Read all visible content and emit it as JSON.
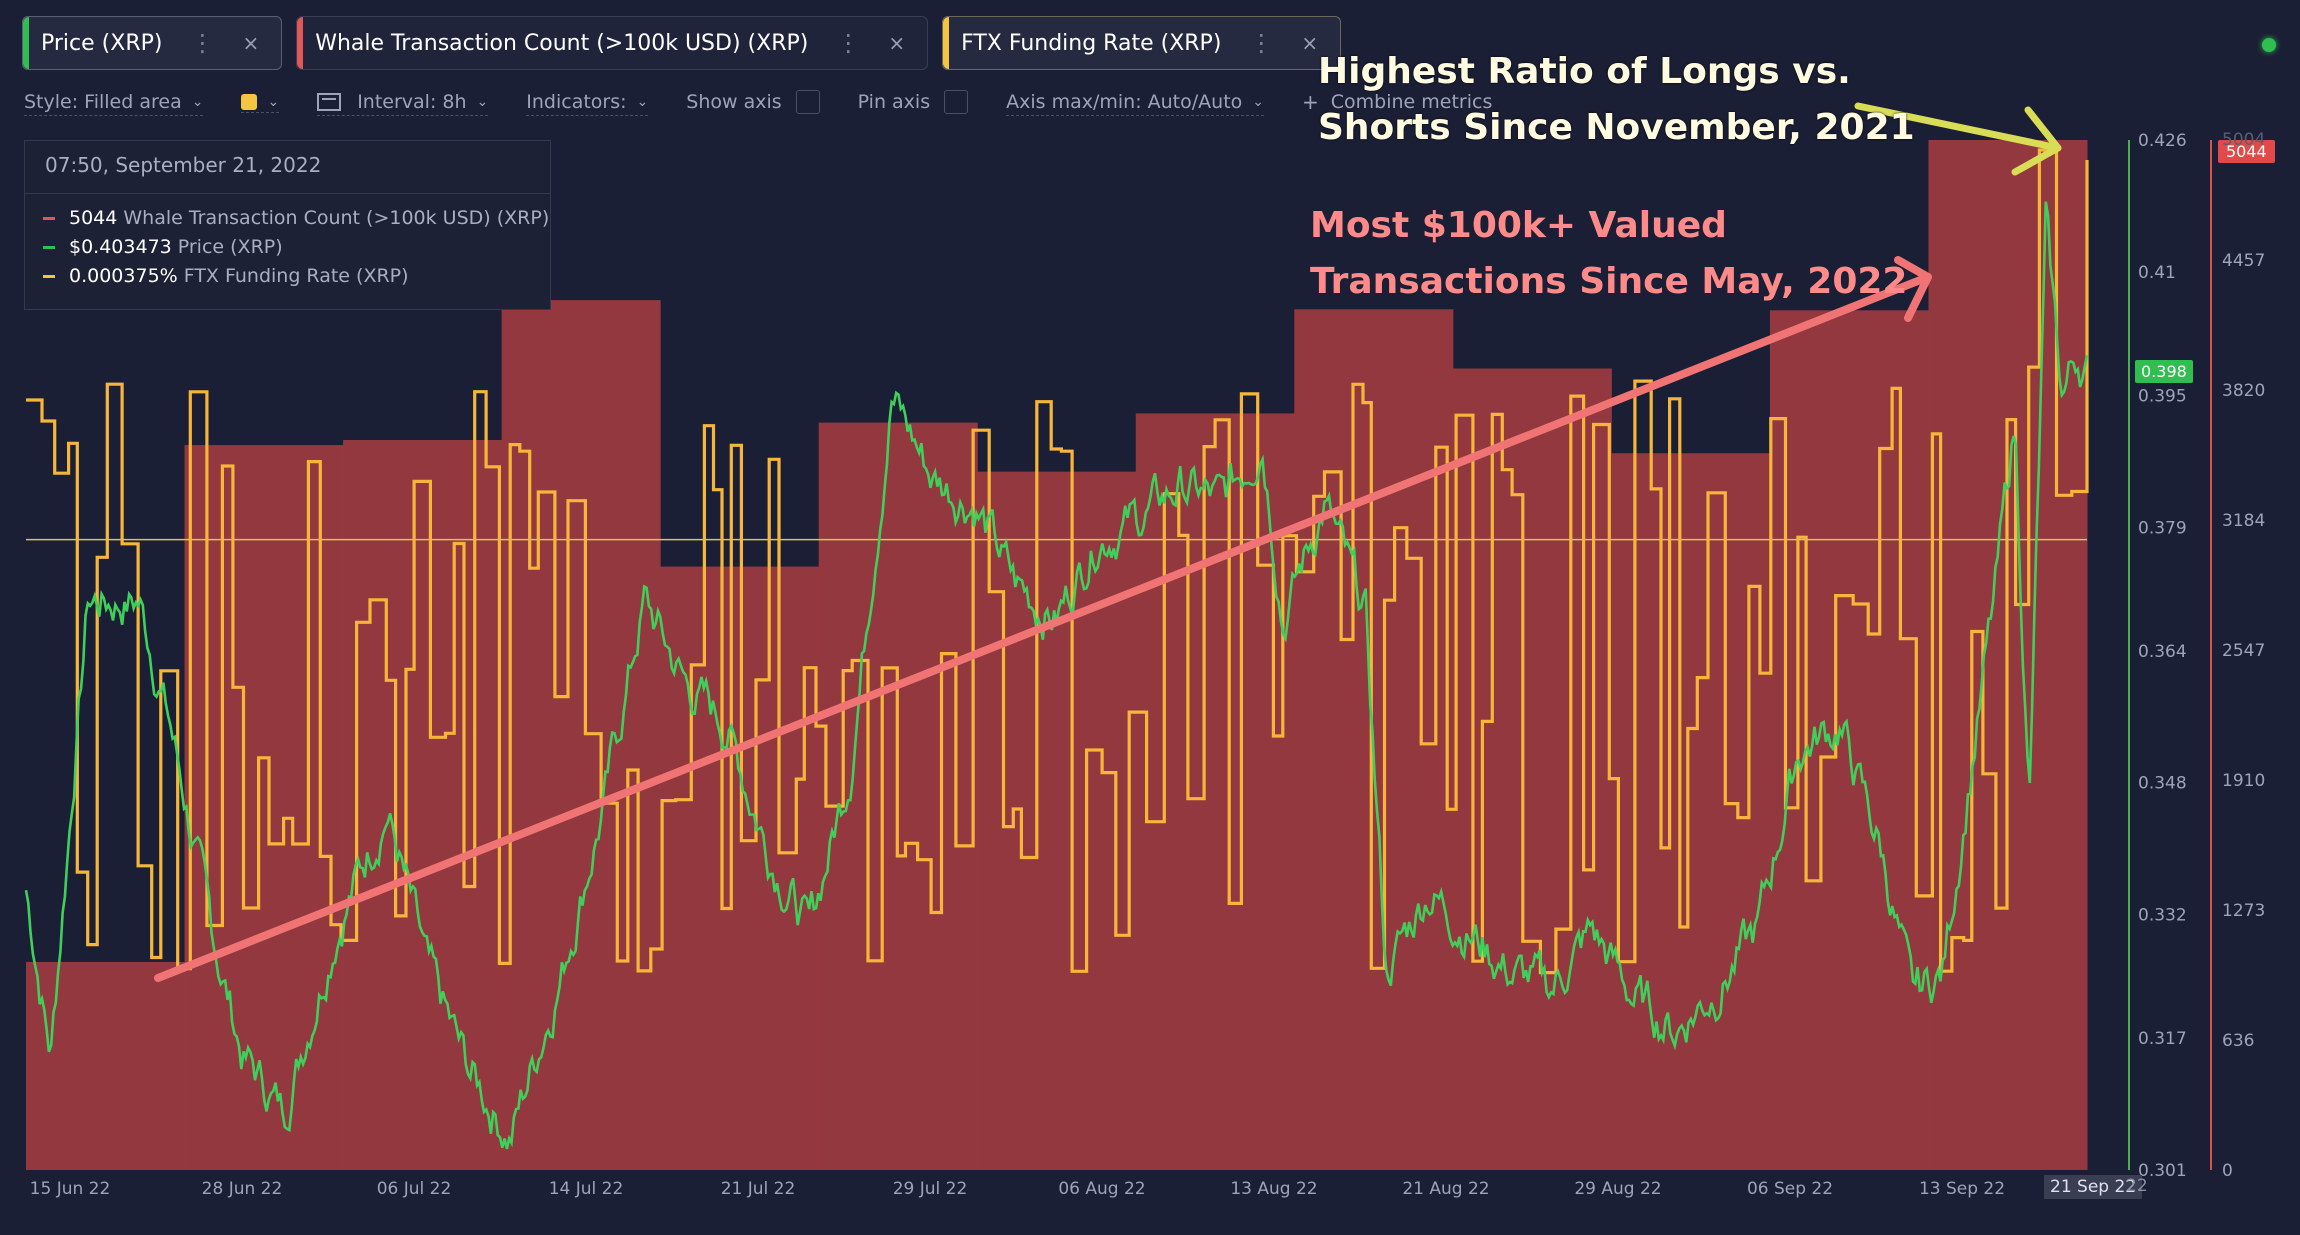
{
  "tabs": [
    {
      "label": "Price (XRP)",
      "color": "#2fbe4f",
      "menu_glyph": "⋮",
      "close_glyph": "×"
    },
    {
      "label": "Whale Transaction Count (>100k USD) (XRP)",
      "color": "#e25656",
      "menu_glyph": "⋮",
      "close_glyph": "×"
    },
    {
      "label": "FTX Funding Rate (XRP)",
      "color": "#f5c542",
      "menu_glyph": "⋮",
      "close_glyph": "×"
    }
  ],
  "toolbar": {
    "style_label": "Style: Filled area",
    "interval_label": "Interval: 8h",
    "indicators_label": "Indicators:",
    "show_axis_label": "Show axis",
    "pin_axis_label": "Pin axis",
    "axis_maxmin_label": "Axis max/min: Auto/Auto",
    "combine_label": "Combine metrics",
    "swatch_color": "#f5c542",
    "chevron_glyph": "⌄",
    "plus_glyph": "+"
  },
  "legend": {
    "datetime": "07:50, September 21, 2022",
    "rows": [
      {
        "value": "5044",
        "name": "Whale Transaction Count (>100k USD) (XRP)",
        "color": "#e25656"
      },
      {
        "value": "$0.403473",
        "name": "Price (XRP)",
        "color": "#2fbe4f"
      },
      {
        "value": "0.000375%",
        "name": "FTX Funding Rate (XRP)",
        "color": "#f5c542"
      }
    ]
  },
  "annotations": {
    "yellow_line1": "Highest Ratio of Longs vs.",
    "yellow_line2": "Shorts Since November, 2021",
    "red_line1": "Most $100k+ Valued",
    "red_line2": "Transactions Since May, 2022"
  },
  "tags": {
    "price_current": "0.398",
    "whale_current": "5044",
    "end_date": "21 Sep 22",
    "hidden_axis_top": "5004",
    "hidden_x_suffix": "22"
  },
  "chart_data": {
    "type": "line",
    "x_ticks": [
      "15 Jun 22",
      "28 Jun 22",
      "06 Jul 22",
      "14 Jul 22",
      "21 Jul 22",
      "29 Jul 22",
      "06 Aug 22",
      "13 Aug 22",
      "21 Aug 22",
      "29 Aug 22",
      "06 Sep 22",
      "13 Sep 22"
    ],
    "price_axis": {
      "ticks": [
        "0.426",
        "0.41",
        "0.395",
        "0.379",
        "0.364",
        "0.348",
        "0.332",
        "0.317",
        "0.301"
      ],
      "range": [
        0.301,
        0.426
      ]
    },
    "whale_axis": {
      "ticks": [
        "4457",
        "3820",
        "3184",
        "2547",
        "1910",
        "1273",
        "636",
        "0"
      ],
      "range": [
        0,
        5044
      ]
    },
    "funding_reference_price_level": 0.3775,
    "whale_series": {
      "name": "Whale Transaction Count (>100k USD) (XRP)",
      "color": "#e25656",
      "weekly_values": [
        1019,
        3550,
        3575,
        4260,
        2955,
        3660,
        3420,
        3705,
        4215,
        3925,
        3510,
        4210,
        5044
      ]
    },
    "price_series": {
      "name": "Price (XRP)",
      "color": "#2fbe4f",
      "anchors": [
        [
          0,
          0.335
        ],
        [
          0.012,
          0.315
        ],
        [
          0.03,
          0.37
        ],
        [
          0.055,
          0.37
        ],
        [
          0.07,
          0.355
        ],
        [
          0.09,
          0.33
        ],
        [
          0.105,
          0.315
        ],
        [
          0.125,
          0.308
        ],
        [
          0.15,
          0.33
        ],
        [
          0.175,
          0.345
        ],
        [
          0.195,
          0.325
        ],
        [
          0.215,
          0.313
        ],
        [
          0.235,
          0.305
        ],
        [
          0.26,
          0.325
        ],
        [
          0.28,
          0.345
        ],
        [
          0.3,
          0.37
        ],
        [
          0.32,
          0.36
        ],
        [
          0.34,
          0.355
        ],
        [
          0.36,
          0.34
        ],
        [
          0.38,
          0.33
        ],
        [
          0.4,
          0.35
        ],
        [
          0.42,
          0.395
        ],
        [
          0.44,
          0.385
        ],
        [
          0.46,
          0.382
        ],
        [
          0.48,
          0.372
        ],
        [
          0.5,
          0.368
        ],
        [
          0.52,
          0.378
        ],
        [
          0.54,
          0.38
        ],
        [
          0.56,
          0.384
        ],
        [
          0.58,
          0.382
        ],
        [
          0.6,
          0.39
        ],
        [
          0.61,
          0.368
        ],
        [
          0.63,
          0.382
        ],
        [
          0.65,
          0.368
        ],
        [
          0.66,
          0.325
        ],
        [
          0.68,
          0.335
        ],
        [
          0.7,
          0.33
        ],
        [
          0.72,
          0.325
        ],
        [
          0.74,
          0.323
        ],
        [
          0.76,
          0.33
        ],
        [
          0.78,
          0.322
        ],
        [
          0.8,
          0.318
        ],
        [
          0.82,
          0.323
        ],
        [
          0.84,
          0.33
        ],
        [
          0.86,
          0.352
        ],
        [
          0.88,
          0.355
        ],
        [
          0.9,
          0.34
        ],
        [
          0.915,
          0.322
        ],
        [
          0.93,
          0.325
        ],
        [
          0.945,
          0.352
        ],
        [
          0.955,
          0.37
        ],
        [
          0.965,
          0.392
        ],
        [
          0.972,
          0.345
        ],
        [
          0.98,
          0.415
        ],
        [
          0.988,
          0.395
        ],
        [
          0.995,
          0.4
        ],
        [
          1.0,
          0.398
        ]
      ]
    },
    "funding_series": {
      "name": "FTX Funding Rate (XRP)",
      "color": "#f5c542",
      "range_note": "stepped oscillation, peak at 21 Sep 22"
    }
  }
}
